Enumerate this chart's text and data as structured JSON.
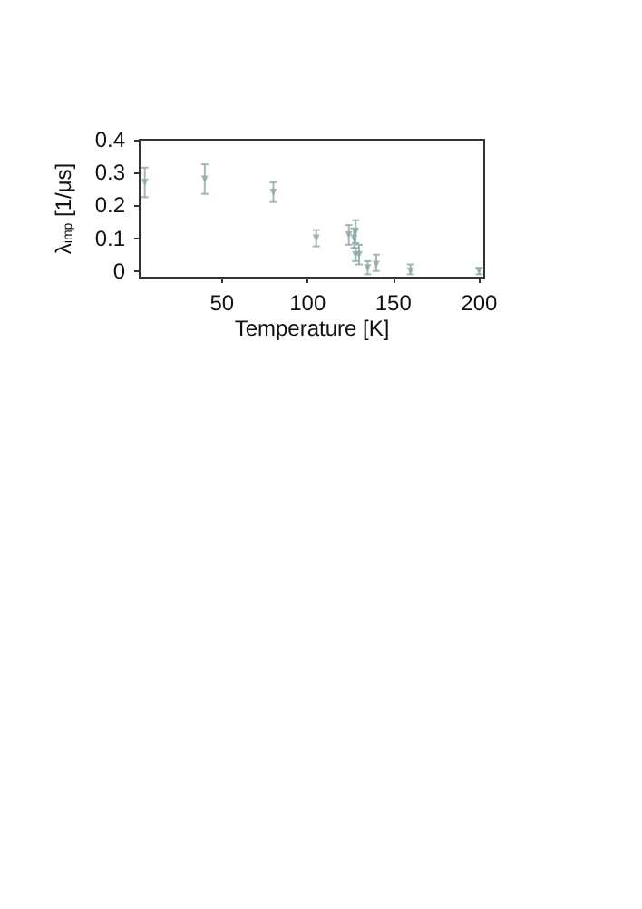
{
  "chart_data": {
    "type": "scatter",
    "xlabel": "Temperature [K]",
    "ylabel": "λ$_{imp}$ [1/μs]",
    "x": [
      5,
      40,
      80,
      105,
      124,
      127,
      128,
      128,
      130,
      135,
      140,
      160,
      200
    ],
    "series": [
      {
        "color": "#8fa8a4",
        "values": [
          0.27,
          0.28,
          0.24,
          0.1,
          0.11,
          0.1,
          0.12,
          0.05,
          0.05,
          0.01,
          0.02,
          0.0,
          0.0
        ],
        "errors": [
          0.045,
          0.045,
          0.03,
          0.025,
          0.03,
          0.03,
          0.035,
          0.02,
          0.03,
          0.02,
          [
            0.02,
            0.03
          ],
          [
            0.01,
            0.02
          ],
          0.01
        ]
      }
    ],
    "xlim": [
      2,
      203
    ],
    "xticks": [
      50,
      100,
      150,
      200
    ],
    "ylim": [
      -0.02,
      0.4
    ],
    "yticks": [
      0,
      0.1,
      0.2,
      0.3,
      0.4
    ],
    "marker": "triangle",
    "grid": false
  }
}
